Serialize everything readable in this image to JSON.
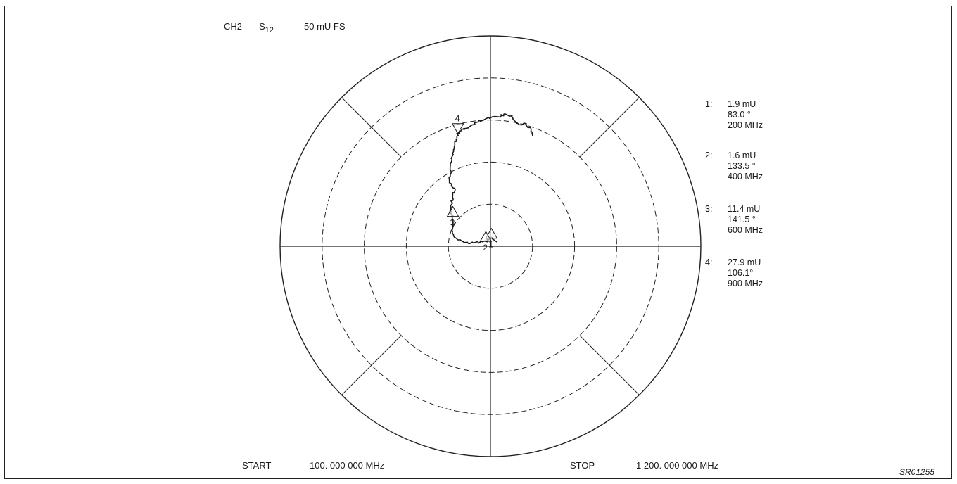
{
  "header": {
    "channel": "CH2",
    "param_main": "S",
    "param_sub": "12",
    "scale": "50 mU FS"
  },
  "footer": {
    "start_label": "START",
    "start_value": "100. 000 000 MHz",
    "stop_label": "STOP",
    "stop_value": "1 200. 000 000 MHz",
    "figure_ref": "SR01255"
  },
  "markers": [
    {
      "id": "1:",
      "magnitude": "1.9 mU",
      "angle": "83.0 °",
      "freq": "200 MHz"
    },
    {
      "id": "2:",
      "magnitude": "1.6 mU",
      "angle": "133.5 °",
      "freq": "400 MHz"
    },
    {
      "id": "3:",
      "magnitude": "11.4 mU",
      "angle": "141.5 °",
      "freq": "600 MHz"
    },
    {
      "id": "4:",
      "magnitude": "27.9 mU",
      "angle": "106.1°",
      "freq": "900 MHz"
    }
  ],
  "chart_data": {
    "type": "polar",
    "full_scale_mU": 50,
    "rings": 5,
    "spokes_deg": [
      0,
      45,
      90,
      135,
      180,
      225,
      270,
      315
    ],
    "colors": {
      "trace": "#1a1a1a",
      "grid": "#222222"
    },
    "trace_start_freq_MHz": 100,
    "trace_stop_freq_MHz": 1200,
    "trace_polar": [
      [
        1.9,
        30
      ],
      [
        1.9,
        83.0
      ],
      [
        1.6,
        133.5
      ],
      [
        3.5,
        165
      ],
      [
        6,
        172
      ],
      [
        8.5,
        168
      ],
      [
        10,
        158
      ],
      [
        11.4,
        141.5
      ],
      [
        13,
        137
      ],
      [
        14.5,
        128
      ],
      [
        16,
        122
      ],
      [
        18,
        123
      ],
      [
        20,
        118
      ],
      [
        22,
        115
      ],
      [
        24,
        112
      ],
      [
        26,
        109
      ],
      [
        27.9,
        106.1
      ],
      [
        28.5,
        103
      ],
      [
        29,
        99
      ],
      [
        29.8,
        95
      ],
      [
        30.5,
        90
      ],
      [
        31,
        86
      ],
      [
        31.5,
        84
      ],
      [
        31.4,
        81
      ],
      [
        29.8,
        78
      ],
      [
        30.2,
        74
      ],
      [
        29.5,
        71
      ],
      [
        28,
        69
      ]
    ],
    "trace_markers": [
      {
        "label": "1",
        "mag": 1.9,
        "angle": 83.0,
        "symbol": "up"
      },
      {
        "label": "2",
        "mag": 1.6,
        "angle": 133.5,
        "symbol": "up"
      },
      {
        "label": "3",
        "mag": 11.4,
        "angle": 141.5,
        "symbol": "up"
      },
      {
        "label": "4",
        "mag": 27.9,
        "angle": 106.1,
        "symbol": "down"
      }
    ]
  }
}
